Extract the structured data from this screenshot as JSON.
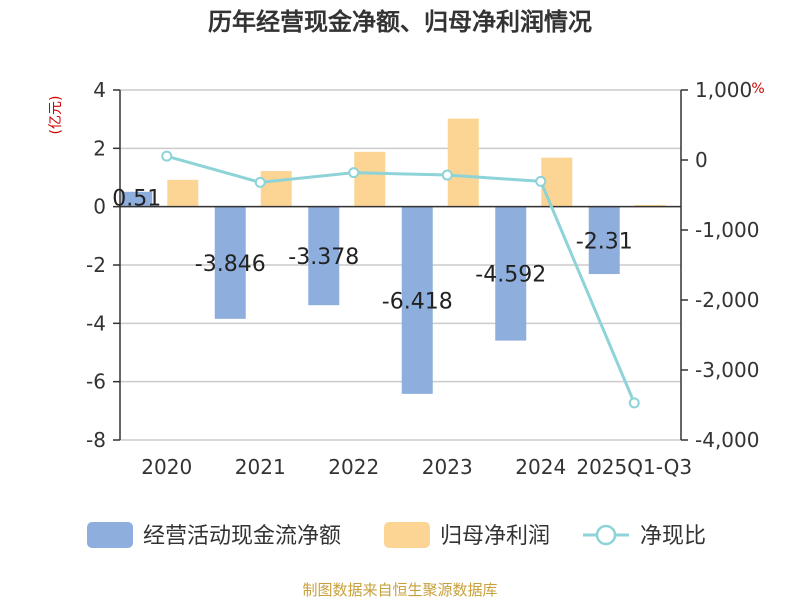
{
  "chart_data": {
    "type": "bar",
    "title": "历年经营现金净额、归母净利润情况",
    "categories": [
      "2020",
      "2021",
      "2022",
      "2023",
      "2024",
      "2025Q1-Q3"
    ],
    "series": [
      {
        "name": "经营活动现金流净额",
        "type": "bar",
        "axis": "left",
        "color": "#8eaedd",
        "values": [
          0.51,
          -3.846,
          -3.378,
          -6.418,
          -4.592,
          -2.31
        ],
        "labels": [
          "0.51",
          "-3.846",
          "-3.378",
          "-6.418",
          "-4.592",
          "-2.31"
        ]
      },
      {
        "name": "归母净利润",
        "type": "bar",
        "axis": "left",
        "color": "#fcd594",
        "values": [
          0.92,
          1.22,
          1.88,
          3.02,
          1.68,
          0.06
        ]
      },
      {
        "name": "净现比",
        "type": "line",
        "axis": "right",
        "color": "#8dd3d8",
        "values": [
          55,
          -320,
          -180,
          -215,
          -305,
          -3470
        ]
      }
    ],
    "left_axis": {
      "unit": "(亿元)",
      "unit_color": "#cc0000",
      "min": -8,
      "max": 4,
      "ticks": [
        4,
        2,
        0,
        -2,
        -4,
        -6,
        -8
      ],
      "tick_labels": [
        "4",
        "2",
        "0",
        "-2",
        "-4",
        "-6",
        "-8"
      ]
    },
    "right_axis": {
      "unit": "%",
      "unit_color": "#cc0000",
      "min": -4000,
      "max": 1000,
      "ticks": [
        1000,
        0,
        -1000,
        -2000,
        -3000,
        -4000
      ],
      "tick_labels": [
        "1,000",
        "0",
        "-1,000",
        "-2,000",
        "-3,000",
        "-4,000"
      ]
    },
    "grid": true,
    "legend_position": "bottom"
  },
  "source": {
    "text": "制图数据来自恒生聚源数据库",
    "color": "#c8a13c"
  }
}
